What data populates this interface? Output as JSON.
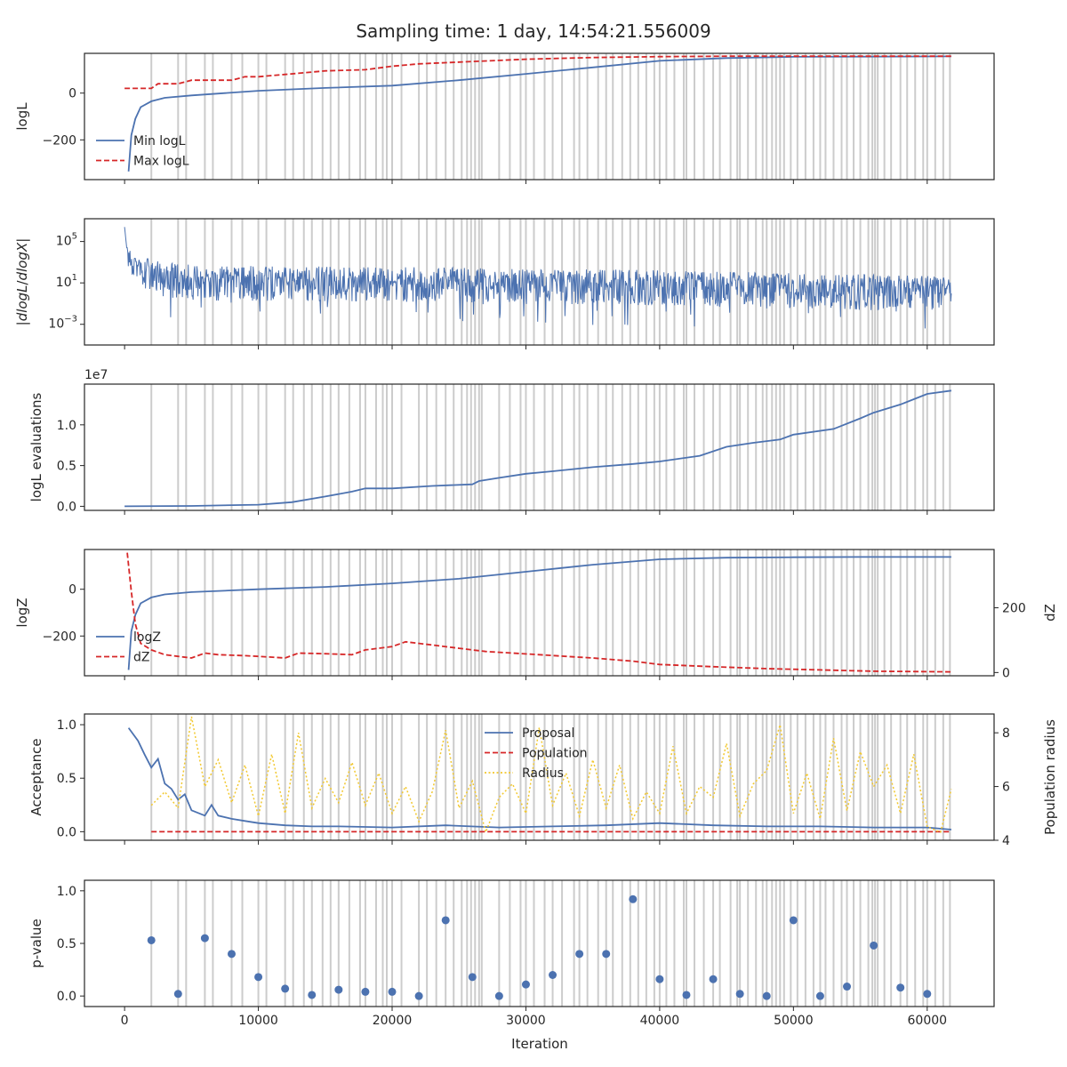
{
  "figure": {
    "title": "Sampling time: 1 day, 14:54:21.556009"
  },
  "colors": {
    "blue": "#4C72B0",
    "red": "#D62728",
    "yellow": "#F2C82F",
    "vline": "#CCCCCC",
    "axis": "#262626"
  },
  "shared": {
    "xlim": [
      -3000,
      65000
    ],
    "xticks": [
      0,
      10000,
      20000,
      30000,
      40000,
      50000,
      60000
    ],
    "xticklabels": [
      "0",
      "10000",
      "20000",
      "30000",
      "40000",
      "50000",
      "60000"
    ],
    "xlabel": "Iteration",
    "vlines": [
      2000,
      4000,
      4600,
      6000,
      6600,
      8000,
      8800,
      10000,
      10600,
      12000,
      12600,
      13400,
      14000,
      14800,
      15400,
      16000,
      16800,
      17600,
      18000,
      18800,
      19300,
      19600,
      20000,
      20700,
      22000,
      22600,
      23300,
      24000,
      24600,
      25200,
      25600,
      25900,
      26200,
      26500,
      26700,
      28000,
      28800,
      29600,
      30000,
      30600,
      31400,
      32000,
      32700,
      33600,
      34000,
      34600,
      35400,
      36000,
      36500,
      37200,
      37800,
      38400,
      39000,
      39600,
      40000,
      40500,
      41100,
      41800,
      42000,
      42600,
      43300,
      44000,
      44500,
      45300,
      45800,
      46000,
      46600,
      47200,
      47700,
      48000,
      48400,
      48700,
      49000,
      49300,
      49800,
      50300,
      50900,
      51500,
      52000,
      52400,
      53000,
      53600,
      54000,
      54500,
      55000,
      55600,
      55900,
      56100,
      56300,
      56800,
      57300,
      58000,
      58500,
      59100,
      59700,
      60000,
      60600,
      61200,
      61700
    ]
  },
  "chart_data": [
    {
      "type": "line",
      "ylabel": "logL",
      "ylim": [
        -370,
        170
      ],
      "yticks": [
        0,
        -200
      ],
      "yticklabels": [
        "0",
        "−200"
      ],
      "legend": "center-left",
      "series": [
        {
          "name": "Min logL",
          "style": "solid",
          "color": "blue",
          "x": [
            300,
            500,
            800,
            1200,
            2000,
            3000,
            5000,
            10000,
            15000,
            20000,
            25000,
            30000,
            35000,
            40000,
            45000,
            50000,
            55000,
            61800
          ],
          "y": [
            -335,
            -180,
            -110,
            -60,
            -35,
            -20,
            -10,
            10,
            22,
            32,
            55,
            82,
            110,
            138,
            150,
            155,
            156,
            157
          ]
        },
        {
          "name": "Max logL",
          "style": "dashed",
          "color": "red",
          "x": [
            0,
            2000,
            2500,
            4000,
            5000,
            6000,
            8000,
            9000,
            10000,
            12000,
            13000,
            15000,
            18000,
            20000,
            22000,
            24000,
            26000,
            30000,
            35000,
            40000,
            45000,
            50000,
            55000,
            61800
          ],
          "y": [
            20,
            20,
            40,
            40,
            55,
            55,
            55,
            70,
            70,
            80,
            85,
            95,
            100,
            115,
            125,
            130,
            135,
            145,
            152,
            156,
            158,
            158,
            158,
            158
          ]
        }
      ]
    },
    {
      "type": "line",
      "ylabel": "|dlogL/dlogX|",
      "yscale": "log",
      "ylim_log10": [
        -5,
        7.2
      ],
      "yticks_log10": [
        5,
        1,
        -3
      ],
      "yticklabels": [
        "10^5",
        "10^1",
        "10^-3"
      ],
      "series": [
        {
          "name": "",
          "style": "solid",
          "color": "blue",
          "noisy": true,
          "x": [
            0,
            500,
            1500,
            3000,
            6000,
            10000,
            20000,
            30000,
            40000,
            50000,
            61800
          ],
          "center_log10": [
            4.5,
            3.0,
            2.2,
            1.6,
            1.2,
            1.2,
            1.1,
            1.0,
            0.8,
            0.5,
            0.2
          ],
          "spread_log10": 1.8
        }
      ]
    },
    {
      "type": "line",
      "ylabel": "logL evaluations",
      "offset_text": "1e7",
      "ylim": [
        -0.05,
        1.5
      ],
      "yticks": [
        0.0,
        0.5,
        1.0
      ],
      "yticklabels": [
        "0.0",
        "0.5",
        "1.0"
      ],
      "series": [
        {
          "name": "",
          "style": "solid",
          "color": "blue",
          "x": [
            0,
            5000,
            10000,
            12500,
            15000,
            17000,
            18000,
            20000,
            23000,
            26000,
            26500,
            28000,
            30000,
            32000,
            35000,
            38000,
            40000,
            43000,
            45000,
            47000,
            49000,
            50000,
            53000,
            55000,
            56000,
            58000,
            60000,
            61800
          ],
          "y": [
            0.0,
            0.005,
            0.02,
            0.05,
            0.12,
            0.18,
            0.22,
            0.22,
            0.25,
            0.27,
            0.31,
            0.35,
            0.4,
            0.43,
            0.48,
            0.52,
            0.55,
            0.62,
            0.73,
            0.78,
            0.82,
            0.88,
            0.95,
            1.08,
            1.15,
            1.25,
            1.38,
            1.42
          ]
        }
      ]
    },
    {
      "type": "line",
      "ylabel": "logZ",
      "ylabel2": "dZ",
      "ylim": [
        -370,
        170
      ],
      "yticks": [
        0,
        -200
      ],
      "yticklabels": [
        "0",
        "−200"
      ],
      "ylim2": [
        -10,
        380
      ],
      "yticks2": [
        0,
        200
      ],
      "yticklabels2": [
        "0",
        "200"
      ],
      "legend": "center-left",
      "series": [
        {
          "name": "logZ",
          "style": "solid",
          "color": "blue",
          "axis": "left",
          "x": [
            300,
            500,
            800,
            1200,
            2000,
            3000,
            5000,
            10000,
            15000,
            20000,
            25000,
            30000,
            35000,
            40000,
            45000,
            50000,
            55000,
            61800
          ],
          "y": [
            -345,
            -180,
            -110,
            -60,
            -35,
            -22,
            -12,
            0,
            10,
            25,
            45,
            75,
            105,
            128,
            135,
            137,
            138,
            138
          ]
        },
        {
          "name": "dZ",
          "style": "dashed",
          "color": "red",
          "axis": "right",
          "x": [
            200,
            500,
            800,
            1200,
            2000,
            3000,
            4000,
            5000,
            6000,
            7000,
            9000,
            10000,
            12000,
            13000,
            15000,
            17000,
            18000,
            20000,
            21000,
            23000,
            25000,
            27000,
            29000,
            31000,
            33000,
            35000,
            38000,
            40000,
            44000,
            48000,
            52000,
            56000,
            61800
          ],
          "y": [
            370,
            250,
            150,
            90,
            70,
            55,
            50,
            45,
            60,
            55,
            52,
            50,
            45,
            60,
            58,
            55,
            70,
            80,
            95,
            85,
            75,
            65,
            60,
            55,
            50,
            45,
            35,
            25,
            18,
            12,
            8,
            4,
            2
          ]
        }
      ]
    },
    {
      "type": "line",
      "ylabel": "Acceptance",
      "ylabel2": "Population radius",
      "ylim": [
        -0.08,
        1.1
      ],
      "yticks": [
        0.0,
        0.5,
        1.0
      ],
      "yticklabels": [
        "0.0",
        "0.5",
        "1.0"
      ],
      "ylim2": [
        4.0,
        8.7
      ],
      "yticks2": [
        4,
        6,
        8
      ],
      "yticklabels2": [
        "4",
        "6",
        "8"
      ],
      "legend": "top-center",
      "series": [
        {
          "name": "Proposal",
          "style": "solid",
          "color": "blue",
          "axis": "left",
          "x": [
            300,
            1000,
            1500,
            2000,
            2500,
            3000,
            3500,
            4000,
            4500,
            5000,
            6000,
            6500,
            7000,
            8000,
            9000,
            10000,
            12000,
            14000,
            16000,
            20000,
            24000,
            28000,
            32000,
            36000,
            40000,
            44000,
            48000,
            52000,
            56000,
            60000,
            61800
          ],
          "y": [
            0.97,
            0.85,
            0.72,
            0.6,
            0.68,
            0.45,
            0.4,
            0.3,
            0.35,
            0.2,
            0.15,
            0.25,
            0.15,
            0.12,
            0.1,
            0.08,
            0.06,
            0.05,
            0.05,
            0.04,
            0.06,
            0.04,
            0.05,
            0.06,
            0.08,
            0.06,
            0.05,
            0.05,
            0.04,
            0.04,
            0.02
          ]
        },
        {
          "name": "Population",
          "style": "dashed",
          "color": "red",
          "axis": "left",
          "x": [
            2000,
            61800
          ],
          "y": [
            0.0,
            0.0
          ]
        },
        {
          "name": "Radius",
          "style": "dotted",
          "color": "yellow",
          "axis": "right",
          "x": [
            2000,
            3000,
            4000,
            5000,
            6000,
            7000,
            8000,
            9000,
            10000,
            11000,
            12000,
            13000,
            14000,
            15000,
            16000,
            17000,
            18000,
            19000,
            20000,
            21000,
            22000,
            23000,
            24000,
            25000,
            26000,
            27000,
            28000,
            29000,
            30000,
            31000,
            32000,
            33000,
            34000,
            35000,
            36000,
            37000,
            38000,
            39000,
            40000,
            41000,
            42000,
            43000,
            44000,
            45000,
            46000,
            47000,
            48000,
            49000,
            50000,
            51000,
            52000,
            53000,
            54000,
            55000,
            56000,
            57000,
            58000,
            59000,
            60000,
            61000,
            61800
          ],
          "y": [
            5.3,
            5.8,
            5.2,
            8.6,
            6.0,
            7.0,
            5.4,
            6.8,
            4.9,
            7.2,
            5.0,
            8.0,
            5.2,
            6.3,
            5.4,
            6.9,
            5.3,
            6.5,
            5.0,
            6.0,
            4.7,
            5.8,
            8.1,
            5.2,
            6.2,
            4.3,
            5.6,
            6.1,
            5.0,
            8.2,
            5.3,
            6.5,
            4.9,
            7.0,
            5.2,
            6.8,
            4.8,
            5.8,
            5.0,
            7.5,
            5.0,
            6.0,
            5.6,
            7.6,
            4.9,
            6.1,
            6.6,
            8.3,
            5.0,
            6.5,
            4.8,
            7.8,
            5.1,
            7.3,
            6.0,
            6.8,
            5.0,
            7.2,
            4.5,
            4.3,
            5.9
          ]
        }
      ]
    },
    {
      "type": "scatter",
      "ylabel": "p-value",
      "ylim": [
        -0.1,
        1.1
      ],
      "yticks": [
        0.0,
        0.5,
        1.0
      ],
      "yticklabels": [
        "0.0",
        "0.5",
        "1.0"
      ],
      "series": [
        {
          "name": "",
          "color": "blue",
          "x": [
            2000,
            4000,
            6000,
            8000,
            10000,
            12000,
            14000,
            16000,
            18000,
            20000,
            22000,
            24000,
            26000,
            28000,
            30000,
            32000,
            34000,
            36000,
            38000,
            40000,
            42000,
            44000,
            46000,
            48000,
            50000,
            52000,
            54000,
            56000,
            58000,
            60000
          ],
          "y": [
            0.53,
            0.02,
            0.55,
            0.4,
            0.18,
            0.07,
            0.01,
            0.06,
            0.04,
            0.04,
            0.0,
            0.72,
            0.18,
            0.0,
            0.11,
            0.2,
            0.4,
            0.4,
            0.92,
            0.16,
            0.01,
            0.16,
            0.02,
            0.0,
            0.72,
            0.0,
            0.09,
            0.48,
            0.08,
            0.02
          ]
        }
      ]
    }
  ]
}
